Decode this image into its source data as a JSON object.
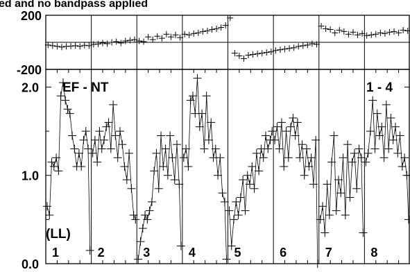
{
  "header_text": "ed and no bandpass applied",
  "chart_data": {
    "type": "line",
    "phase_panel": {
      "ylim": [
        -200,
        200
      ],
      "yticks": [
        "200",
        "-200"
      ],
      "series": [
        {
          "x": [
            0.5,
            1.5,
            2.5,
            3.5,
            4.5,
            5.5,
            6.5,
            7.5,
            8.5,
            9.5
          ],
          "y": [
            -20,
            -25,
            -30,
            -35,
            -30,
            -28,
            -25,
            -30,
            -22,
            -25
          ]
        },
        {
          "x": [
            0.5,
            1.5,
            2.5,
            3.5,
            4.5,
            5.5,
            6.5,
            7.5,
            8.5,
            9.5
          ],
          "y": [
            -15,
            -12,
            -5,
            -10,
            0,
            5,
            -5,
            10,
            15,
            20
          ]
        },
        {
          "x": [
            0.5,
            1.5,
            2.5,
            3.5,
            4.5,
            5.5,
            6.5,
            7.5,
            8.5,
            9.5
          ],
          "y": [
            10,
            5,
            40,
            20,
            45,
            30,
            60,
            40,
            55,
            35
          ]
        },
        {
          "x": [
            0.5,
            1.5,
            2.5,
            3.5,
            4.5,
            5.5,
            6.5,
            7.5,
            8.5,
            9.5
          ],
          "y": [
            60,
            55,
            65,
            70,
            80,
            85,
            95,
            100,
            110,
            125
          ]
        },
        {
          "x": [
            0.5,
            1.5,
            2.5,
            3.5,
            4.5,
            5.5,
            6.5,
            7.5,
            8.5,
            9.5
          ],
          "y": [
            180,
            -80,
            -100,
            -120,
            -95,
            -90,
            -85,
            -80,
            -75,
            -70
          ]
        },
        {
          "x": [
            0.5,
            1.5,
            2.5,
            3.5,
            4.5,
            5.5,
            6.5,
            7.5,
            8.5,
            9.5
          ],
          "y": [
            -60,
            -55,
            -50,
            -45,
            -40,
            -30,
            -25,
            -20,
            -10,
            -15
          ]
        },
        {
          "x": [
            0.5,
            1.5,
            2.5,
            3.5,
            4.5,
            5.5,
            6.5,
            7.5,
            8.5,
            9.5
          ],
          "y": [
            120,
            100,
            95,
            70,
            90,
            80,
            60,
            75,
            55,
            65
          ]
        },
        {
          "x": [
            0.5,
            1.5,
            2.5,
            3.5,
            4.5,
            5.5,
            6.5,
            7.5,
            8.5,
            9.5
          ],
          "y": [
            50,
            55,
            60,
            70,
            65,
            75,
            80,
            70,
            90,
            85
          ]
        }
      ]
    },
    "amplitude_panel": {
      "ylim": [
        0.0,
        2.2
      ],
      "yticks": [
        "2.0",
        "1.0",
        "0.0"
      ],
      "annotation_left": "EF - NT",
      "annotation_right": "1 - 4",
      "polarization": "(LL)",
      "series": [
        {
          "name": "1",
          "x": [
            0.3,
            0.8,
            1.3,
            1.8,
            2.3,
            2.8,
            3.3,
            3.8,
            4.3,
            4.8,
            5.3,
            5.8,
            6.3,
            6.8,
            7.3,
            7.8,
            8.3,
            8.8,
            9.3,
            9.7
          ],
          "y": [
            0.65,
            0.55,
            1.15,
            1.1,
            1.2,
            1.05,
            1.9,
            2.05,
            1.85,
            1.75,
            1.7,
            1.45,
            1.3,
            1.1,
            1.25,
            1.1,
            1.4,
            1.5,
            1.3,
            0.15
          ]
        },
        {
          "name": "2",
          "x": [
            0.3,
            0.8,
            1.3,
            1.8,
            2.3,
            2.8,
            3.3,
            3.8,
            4.3,
            4.8,
            5.3,
            5.8,
            6.3,
            6.8,
            7.3,
            7.8,
            8.3,
            8.8,
            9.3,
            9.7
          ],
          "y": [
            1.25,
            1.4,
            1.15,
            1.5,
            1.3,
            1.4,
            1.55,
            1.6,
            1.3,
            1.8,
            1.45,
            1.2,
            1.5,
            1.35,
            1.1,
            0.95,
            1.25,
            0.85,
            0.55,
            0.5
          ]
        },
        {
          "name": "3",
          "x": [
            0.3,
            0.8,
            1.3,
            1.8,
            2.3,
            2.8,
            3.3,
            3.8,
            4.3,
            4.8,
            5.3,
            5.8,
            6.3,
            6.8,
            7.3,
            7.8,
            8.3,
            8.8,
            9.3,
            9.7
          ],
          "y": [
            0.05,
            0.25,
            0.4,
            0.55,
            0.5,
            0.6,
            0.7,
            1.05,
            1.25,
            0.85,
            1.45,
            1.1,
            1.3,
            1.0,
            1.45,
            1.2,
            0.95,
            1.35,
            0.9,
            0.2
          ]
        },
        {
          "name": "4",
          "x": [
            0.3,
            0.8,
            1.3,
            1.8,
            2.3,
            2.8,
            3.3,
            3.8,
            4.3,
            4.8,
            5.3,
            5.8,
            6.3,
            6.8,
            7.3,
            7.8,
            8.3,
            8.8,
            9.3,
            9.7
          ],
          "y": [
            1.2,
            1.3,
            1.1,
            1.85,
            1.9,
            1.7,
            2.1,
            1.55,
            1.7,
            1.3,
            1.9,
            1.4,
            1.6,
            1.2,
            1.3,
            1.0,
            1.2,
            0.8,
            0.7,
            0.05
          ]
        },
        {
          "name": "5",
          "x": [
            0.3,
            0.8,
            1.3,
            1.8,
            2.3,
            2.8,
            3.3,
            3.8,
            4.3,
            4.8,
            5.3,
            5.8,
            6.3,
            6.8,
            7.3,
            7.8,
            8.3,
            8.8,
            9.3,
            9.7
          ],
          "y": [
            0.6,
            0.2,
            0.5,
            0.7,
            0.55,
            0.75,
            0.95,
            0.6,
            1.0,
            0.9,
            1.1,
            0.85,
            1.25,
            1.05,
            1.3,
            1.2,
            1.45,
            1.3,
            1.4,
            1.5
          ]
        },
        {
          "name": "6",
          "x": [
            0.3,
            0.8,
            1.3,
            1.8,
            2.3,
            2.8,
            3.3,
            3.8,
            4.3,
            4.8,
            5.3,
            5.8,
            6.3,
            6.8,
            7.3,
            7.8,
            8.3,
            8.8,
            9.3,
            9.7
          ],
          "y": [
            1.4,
            1.55,
            1.3,
            1.6,
            1.1,
            1.5,
            1.2,
            1.55,
            1.65,
            1.45,
            1.6,
            1.2,
            1.35,
            1.0,
            1.3,
            1.1,
            1.2,
            0.9,
            1.4,
            0.0
          ]
        },
        {
          "name": "7",
          "x": [
            0.3,
            0.8,
            1.3,
            1.8,
            2.3,
            2.8,
            3.3,
            3.8,
            4.3,
            4.8,
            5.3,
            5.8,
            6.3,
            6.8,
            7.3,
            7.8,
            8.3,
            8.8,
            9.3,
            9.7
          ],
          "y": [
            0.5,
            0.65,
            0.35,
            0.9,
            0.55,
            1.15,
            1.45,
            0.6,
            0.95,
            0.8,
            1.2,
            0.55,
            1.35,
            0.75,
            1.15,
            1.25,
            0.85,
            1.3,
            1.2,
            0.35
          ]
        },
        {
          "name": "8",
          "x": [
            0.3,
            0.8,
            1.3,
            1.8,
            2.3,
            2.8,
            3.3,
            3.8,
            4.3,
            4.8,
            5.3,
            5.8,
            6.3,
            6.8,
            7.3,
            7.8,
            8.3,
            8.8,
            9.3,
            9.7
          ],
          "y": [
            1.15,
            1.25,
            1.5,
            1.85,
            1.3,
            1.7,
            1.45,
            1.55,
            1.2,
            1.8,
            1.3,
            1.65,
            1.4,
            1.55,
            1.25,
            1.45,
            1.1,
            1.2,
            1.0,
            0.5
          ]
        }
      ]
    }
  }
}
